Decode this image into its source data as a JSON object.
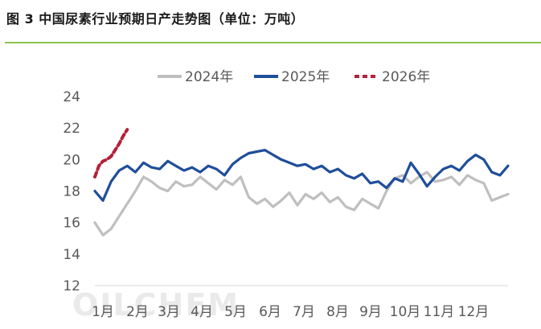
{
  "header": {
    "title": "图 3  中国尿素行业预期日产走势图（单位：万吨）"
  },
  "watermark": "OILCHEM",
  "colors": {
    "2024": "#bfbfbf",
    "2025": "#1f4e9a",
    "2026": "#b3213a",
    "accent_rule": "#8bc34a"
  },
  "chart_data": {
    "type": "line",
    "title": "",
    "xlabel": "",
    "ylabel": "",
    "ylim": [
      12,
      24
    ],
    "yticks": [
      "24",
      "22",
      "20",
      "18",
      "16",
      "14",
      "12"
    ],
    "categories": [
      "1月",
      "2月",
      "3月",
      "4月",
      "5月",
      "6月",
      "7月",
      "8月",
      "9月",
      "10月",
      "11月",
      "12月"
    ],
    "x_unit": "week",
    "x_range": [
      1,
      52
    ],
    "legend_position": "top-center",
    "series": [
      {
        "name": "2024年",
        "color": "#bfbfbf",
        "style": "solid",
        "x": [
          1,
          2,
          3,
          4,
          5,
          6,
          7,
          8,
          9,
          10,
          11,
          12,
          13,
          14,
          15,
          16,
          17,
          18,
          19,
          20,
          21,
          22,
          23,
          24,
          25,
          26,
          27,
          28,
          29,
          30,
          31,
          32,
          33,
          34,
          35,
          36,
          37,
          38,
          39,
          40,
          41,
          42,
          43,
          44,
          45,
          46,
          47,
          48,
          49,
          50,
          51,
          52
        ],
        "values": [
          16.0,
          15.2,
          15.6,
          16.4,
          17.2,
          18.0,
          18.9,
          18.6,
          18.2,
          18.0,
          18.6,
          18.3,
          18.4,
          18.9,
          18.5,
          18.1,
          18.7,
          18.4,
          18.9,
          17.6,
          17.2,
          17.5,
          17.0,
          17.4,
          17.9,
          17.1,
          17.8,
          17.5,
          17.9,
          17.3,
          17.6,
          17.0,
          16.8,
          17.5,
          17.2,
          16.9,
          18.0,
          18.8,
          19.0,
          18.5,
          18.9,
          19.2,
          18.6,
          18.7,
          18.9,
          18.4,
          19.0,
          18.7,
          18.5,
          17.4,
          17.6,
          17.8
        ]
      },
      {
        "name": "2025年",
        "color": "#1f4e9a",
        "style": "solid",
        "x": [
          1,
          2,
          3,
          4,
          5,
          6,
          7,
          8,
          9,
          10,
          11,
          12,
          13,
          14,
          15,
          16,
          17,
          18,
          19,
          20,
          21,
          22,
          23,
          24,
          25,
          26,
          27,
          28,
          29,
          30,
          31,
          32,
          33,
          34,
          35,
          36,
          37,
          38,
          39,
          40,
          41,
          42,
          43,
          44,
          45,
          46,
          47,
          48,
          49,
          50,
          51,
          52
        ],
        "values": [
          18.0,
          17.4,
          18.6,
          19.3,
          19.6,
          19.2,
          19.8,
          19.5,
          19.4,
          19.9,
          19.6,
          19.3,
          19.5,
          19.2,
          19.6,
          19.4,
          19.0,
          19.7,
          20.1,
          20.4,
          20.5,
          20.6,
          20.3,
          20.0,
          19.8,
          19.6,
          19.7,
          19.4,
          19.6,
          19.2,
          19.4,
          19.0,
          18.8,
          19.1,
          18.5,
          18.6,
          18.2,
          18.8,
          18.6,
          19.8,
          19.1,
          18.3,
          18.9,
          19.4,
          19.6,
          19.3,
          19.9,
          20.3,
          20.0,
          19.2,
          19.0,
          19.6
        ]
      },
      {
        "name": "2026年",
        "color": "#b3213a",
        "style": "dashed",
        "x": [
          1,
          1.5,
          2,
          2.5,
          3,
          3.5,
          4,
          4.5,
          5
        ],
        "values": [
          18.9,
          19.6,
          19.9,
          20.0,
          20.2,
          20.6,
          21.0,
          21.5,
          21.9
        ]
      }
    ]
  }
}
